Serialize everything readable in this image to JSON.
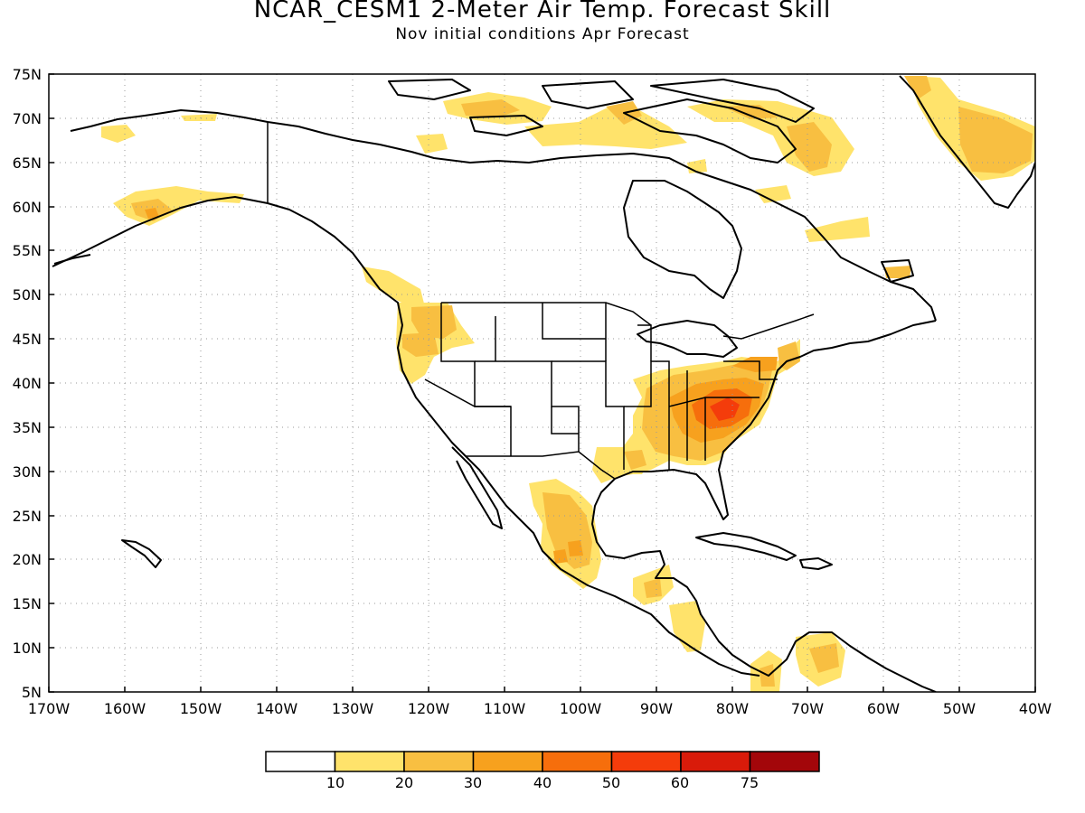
{
  "title": "NCAR_CESM1 2-Meter Air Temp. Forecast Skill",
  "subtitle": "Nov initial conditions  Apr Forecast",
  "map": {
    "lat_ticks": [
      "75N",
      "70N",
      "65N",
      "60N",
      "55N",
      "50N",
      "45N",
      "40N",
      "35N",
      "30N",
      "25N",
      "20N",
      "15N",
      "10N",
      "5N"
    ],
    "lon_ticks": [
      "170W",
      "160W",
      "150W",
      "140W",
      "130W",
      "120W",
      "110W",
      "100W",
      "90W",
      "80W",
      "70W",
      "60W",
      "50W",
      "40W"
    ],
    "lat_range": [
      5,
      75
    ],
    "lon_range": [
      -170,
      -40
    ],
    "grid": "dotted"
  },
  "legend": {
    "labels": [
      "10",
      "20",
      "30",
      "40",
      "50",
      "60",
      "75"
    ],
    "colors": [
      "#ffffff",
      "#ffe36b",
      "#f8bf41",
      "#f7a11e",
      "#f66e0c",
      "#f43c0b",
      "#d91b0a",
      "#a3060a"
    ]
  },
  "skill_regions": [
    {
      "name": "Southeast US (NC/VA core)",
      "level": 5
    },
    {
      "name": "Southeast US",
      "level": 3
    },
    {
      "name": "Pacific Northwest",
      "level": 3
    },
    {
      "name": "Central Mexico",
      "level": 3
    },
    {
      "name": "Greenland",
      "level": 2
    },
    {
      "name": "Canadian Arctic Archipelago",
      "level": 2
    },
    {
      "name": "Southern Alaska",
      "level": 2
    },
    {
      "name": "Central America",
      "level": 2
    },
    {
      "name": "Northern South America",
      "level": 2
    }
  ]
}
